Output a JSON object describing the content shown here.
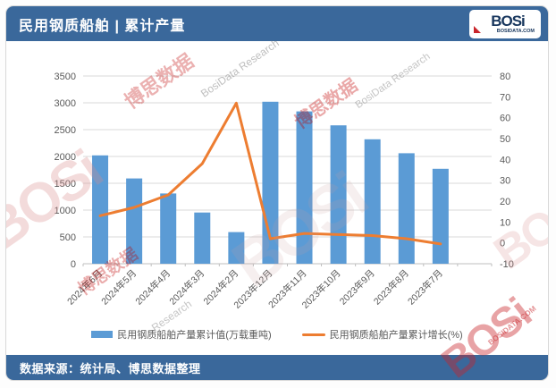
{
  "header": {
    "title": "民用钢质船舶 | 累计产量",
    "logo": {
      "name": "BOSi",
      "domain": "BOSIDATA.COM"
    }
  },
  "footer": {
    "source": "数据来源：统计局、博思数据整理"
  },
  "theme": {
    "banner_bg": "#3A689B",
    "bar_color": "#5B9BD5",
    "line_color": "#ED7D31",
    "grid_color": "#D9D9D9",
    "axis_color": "#BFBFBF",
    "tick_text_color": "#595959",
    "logo_navy": "#17365D",
    "logo_red": "#C9252B"
  },
  "chart_data": {
    "type": "bar",
    "subtype": "bar+line dual axis",
    "categories": [
      "2024年6月",
      "2024年5月",
      "2024年4月",
      "2024年3月",
      "2024年2月",
      "2023年12月",
      "2023年11月",
      "2023年10月",
      "2023年9月",
      "2023年8月",
      "2023年7月"
    ],
    "series": [
      {
        "name": "民用钢质船舶产量累计值(万载重吨)",
        "type": "bar",
        "axis": "left",
        "color": "#5B9BD5",
        "values": [
          2020,
          1590,
          1310,
          955,
          590,
          3020,
          2840,
          2580,
          2320,
          2060,
          1770
        ]
      },
      {
        "name": "民用钢质船舶产量累计增长(%)",
        "type": "line",
        "axis": "right",
        "color": "#ED7D31",
        "values": [
          13,
          17,
          23,
          38,
          67,
          2,
          4.5,
          4,
          3.5,
          2,
          -0.5
        ]
      }
    ],
    "left_axis": {
      "min": 0,
      "max": 3500,
      "step": 500,
      "ticks": [
        "0",
        "500",
        "1000",
        "1500",
        "2000",
        "2500",
        "3000",
        "3500"
      ]
    },
    "right_axis": {
      "min": -10,
      "max": 80,
      "step": 10,
      "ticks": [
        "-10",
        "0",
        "10",
        "20",
        "30",
        "40",
        "50",
        "60",
        "70",
        "80"
      ]
    },
    "grid": true,
    "legend_position": "bottom",
    "x_label_rotation": -45
  },
  "watermarks": [
    {
      "text": "博思数据"
    },
    {
      "text": "BosiData Research"
    },
    {
      "text": "BOSi"
    },
    {
      "text": "博思数据"
    },
    {
      "text": "BosiData Research"
    },
    {
      "text": "BOSi"
    },
    {
      "text": "BOSi"
    },
    {
      "text": "BOSi"
    },
    {
      "text": "BOSIDATA.COM"
    },
    {
      "text": "博思数据"
    },
    {
      "text": "Research"
    }
  ]
}
